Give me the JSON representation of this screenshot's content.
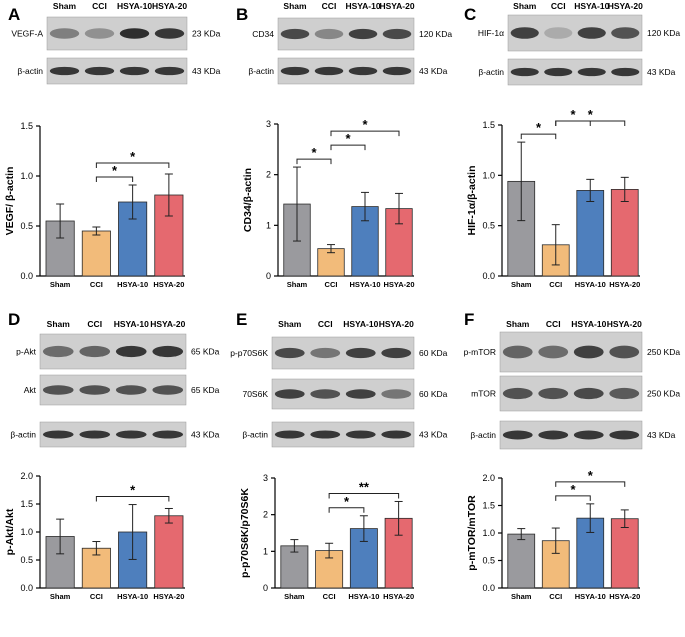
{
  "colors": {
    "Sham": "#9a9a9e",
    "CCI": "#f2bb7a",
    "HSYA-10": "#4e7fbd",
    "HSYA-20": "#e5696f",
    "band": "#1c1c1c",
    "blot_bg": "#cfcfcf"
  },
  "panels": [
    {
      "letter": "A",
      "lanes": [
        "Sham",
        "CCI",
        "HSYA-10",
        "HSYA-20"
      ],
      "blots": [
        {
          "label": "VEGF-A",
          "size": "23 KDa",
          "intensity": [
            0.45,
            0.35,
            0.9,
            0.85
          ]
        },
        {
          "label": "β-actin",
          "size": "43 KDa",
          "intensity": [
            0.85,
            0.85,
            0.85,
            0.85
          ]
        }
      ],
      "sig": [
        {
          "from": 1,
          "to": 2,
          "text": "*"
        },
        {
          "from": 1,
          "to": 3,
          "text": "*"
        }
      ]
    },
    {
      "letter": "B",
      "lanes": [
        "Sham",
        "CCI",
        "HSYA-10",
        "HSYA-20"
      ],
      "blots": [
        {
          "label": "CD34",
          "size": "120 KDa",
          "intensity": [
            0.75,
            0.4,
            0.8,
            0.75
          ]
        },
        {
          "label": "β-actin",
          "size": "43 KDa",
          "intensity": [
            0.85,
            0.85,
            0.85,
            0.85
          ]
        }
      ],
      "sig": [
        {
          "from": 0,
          "to": 1,
          "text": "*"
        },
        {
          "from": 1,
          "to": 2,
          "text": "*"
        },
        {
          "from": 1,
          "to": 3,
          "text": "*"
        }
      ]
    },
    {
      "letter": "C",
      "lanes": [
        "Sham",
        "CCI",
        "HSYA-10",
        "HSYA-20"
      ],
      "blots": [
        {
          "label": "HIF-1α",
          "size": "120 KDa",
          "intensity": [
            0.8,
            0.2,
            0.8,
            0.7
          ]
        },
        {
          "label": "β-actin",
          "size": "43 KDa",
          "intensity": [
            0.85,
            0.85,
            0.85,
            0.85
          ]
        }
      ],
      "sig": [
        {
          "from": 0,
          "to": 1,
          "text": "*"
        },
        {
          "from": 1,
          "to": 2,
          "text": "*"
        },
        {
          "from": 1,
          "to": 3,
          "text": "*"
        }
      ]
    },
    {
      "letter": "D",
      "lanes": [
        "Sham",
        "CCI",
        "HSYA-10",
        "HSYA-20"
      ],
      "blots": [
        {
          "label": "p-Akt",
          "size": "65 KDa",
          "intensity": [
            0.55,
            0.6,
            0.85,
            0.85
          ]
        },
        {
          "label": "Akt",
          "size": "65 KDa",
          "intensity": [
            0.7,
            0.7,
            0.7,
            0.7
          ]
        },
        {
          "label": "β-actin",
          "size": "43 KDa",
          "intensity": [
            0.85,
            0.85,
            0.85,
            0.85
          ]
        }
      ],
      "sig": [
        {
          "from": 1,
          "to": 3,
          "text": "*"
        }
      ]
    },
    {
      "letter": "E",
      "lanes": [
        "Sham",
        "CCI",
        "HSYA-10",
        "HSYA-20"
      ],
      "blots": [
        {
          "label": "p-p70S6K",
          "size": "60 KDa",
          "intensity": [
            0.75,
            0.5,
            0.8,
            0.8
          ]
        },
        {
          "label": "70S6K",
          "size": "60 KDa",
          "intensity": [
            0.8,
            0.7,
            0.8,
            0.5
          ]
        },
        {
          "label": "β-actin",
          "size": "43 KDa",
          "intensity": [
            0.85,
            0.85,
            0.85,
            0.85
          ]
        }
      ],
      "sig": [
        {
          "from": 1,
          "to": 2,
          "text": "*"
        },
        {
          "from": 1,
          "to": 3,
          "text": "**"
        }
      ]
    },
    {
      "letter": "F",
      "lanes": [
        "Sham",
        "CCI",
        "HSYA-10",
        "HSYA-20"
      ],
      "blots": [
        {
          "label": "p-mTOR",
          "size": "250 KDa",
          "intensity": [
            0.6,
            0.55,
            0.8,
            0.7
          ]
        },
        {
          "label": "mTOR",
          "size": "250 KDa",
          "intensity": [
            0.7,
            0.7,
            0.75,
            0.65
          ]
        },
        {
          "label": "β-actin",
          "size": "43 KDa",
          "intensity": [
            0.85,
            0.85,
            0.85,
            0.85
          ]
        }
      ],
      "sig": [
        {
          "from": 1,
          "to": 2,
          "text": "*"
        },
        {
          "from": 1,
          "to": 3,
          "text": "*"
        }
      ]
    }
  ],
  "chart_data": [
    {
      "type": "bar",
      "panel": "A",
      "categories": [
        "Sham",
        "CCI",
        "HSYA-10",
        "HSYA-20"
      ],
      "values": [
        0.55,
        0.45,
        0.74,
        0.81
      ],
      "errors": [
        0.17,
        0.04,
        0.17,
        0.21
      ],
      "ylabel": "VEGF/ β-actin",
      "ylim": [
        0,
        1.5
      ],
      "yticks": [
        "0.0",
        "0.5",
        "1.0",
        "1.5"
      ]
    },
    {
      "type": "bar",
      "panel": "B",
      "categories": [
        "Sham",
        "CCI",
        "HSYA-10",
        "HSYA-20"
      ],
      "values": [
        1.42,
        0.54,
        1.37,
        1.33
      ],
      "errors": [
        0.73,
        0.08,
        0.28,
        0.3
      ],
      "ylabel": "CD34/β-actin",
      "ylim": [
        0,
        3
      ],
      "yticks": [
        "0",
        "1",
        "2",
        "3"
      ]
    },
    {
      "type": "bar",
      "panel": "C",
      "categories": [
        "Sham",
        "CCI",
        "HSYA-10",
        "HSYA-20"
      ],
      "values": [
        0.94,
        0.31,
        0.85,
        0.86
      ],
      "errors": [
        0.39,
        0.2,
        0.11,
        0.12
      ],
      "ylabel": "HIF-1α/β-actin",
      "ylim": [
        0,
        1.5
      ],
      "yticks": [
        "0.0",
        "0.5",
        "1.0",
        "1.5"
      ]
    },
    {
      "type": "bar",
      "panel": "D",
      "categories": [
        "Sham",
        "CCI",
        "HSYA-10",
        "HSYA-20"
      ],
      "values": [
        0.92,
        0.71,
        1.0,
        1.29
      ],
      "errors": [
        0.31,
        0.12,
        0.49,
        0.13
      ],
      "ylabel": "p-Akt/Akt",
      "ylim": [
        0,
        2
      ],
      "yticks": [
        "0.0",
        "0.5",
        "1.0",
        "1.5",
        "2.0"
      ]
    },
    {
      "type": "bar",
      "panel": "E",
      "categories": [
        "Sham",
        "CCI",
        "HSYA-10",
        "HSYA-20"
      ],
      "values": [
        1.15,
        1.02,
        1.62,
        1.9
      ],
      "errors": [
        0.17,
        0.2,
        0.35,
        0.46
      ],
      "ylabel": "p-p70S6K/p70S6K",
      "ylim": [
        0,
        3
      ],
      "yticks": [
        "0",
        "1",
        "2",
        "3"
      ]
    },
    {
      "type": "bar",
      "panel": "F",
      "categories": [
        "Sham",
        "CCI",
        "HSYA-10",
        "HSYA-20"
      ],
      "values": [
        0.98,
        0.86,
        1.27,
        1.26
      ],
      "errors": [
        0.1,
        0.23,
        0.26,
        0.16
      ],
      "ylabel": "p-mTOR/mTOR",
      "ylim": [
        0,
        2
      ],
      "yticks": [
        "0.0",
        "0.5",
        "1.0",
        "1.5",
        "2.0"
      ]
    }
  ]
}
